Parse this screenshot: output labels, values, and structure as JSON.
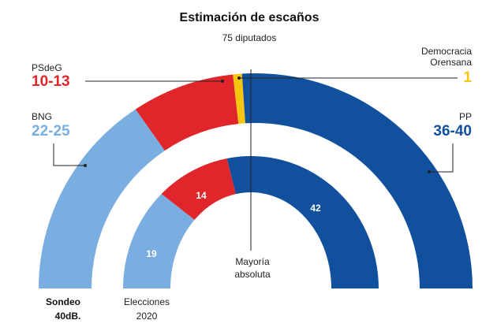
{
  "chart_data": {
    "type": "hemicycle",
    "title": "Estimación de escaños",
    "subtitle": "75 diputados",
    "outer_ring": {
      "label_line1": "Sondeo",
      "label_line2": "40dB.",
      "order": [
        "BNG",
        "PSdeG",
        "Democracia Orensana",
        "PP"
      ],
      "seats_for_angles": [
        23.5,
        11.5,
        1,
        39
      ],
      "labels": [
        {
          "name": "BNG",
          "value": "22-25",
          "color": "#7aaee0"
        },
        {
          "name": "PSdeG",
          "value": "10-13",
          "color": "#e0262b"
        },
        {
          "name_line1": "Democracia",
          "name_line2": "Orensana",
          "value": "1",
          "color": "#f5c60f"
        },
        {
          "name": "PP",
          "value": "36-40",
          "color": "#11509c"
        }
      ]
    },
    "inner_ring": {
      "label_line1": "Elecciones",
      "label_line2": "2020",
      "order": [
        "BNG",
        "PSdeG",
        "PP"
      ],
      "values": [
        19,
        14,
        42
      ],
      "value_labels": [
        "19",
        "14",
        "42"
      ]
    },
    "majority": {
      "label_line1": "Mayoría",
      "label_line2": "absoluta"
    },
    "total_seats": 75,
    "colors": {
      "BNG": "#7aaee0",
      "PSdeG": "#e0262b",
      "Democracia Orensana": "#f5c60f",
      "PP": "#11509c"
    }
  }
}
